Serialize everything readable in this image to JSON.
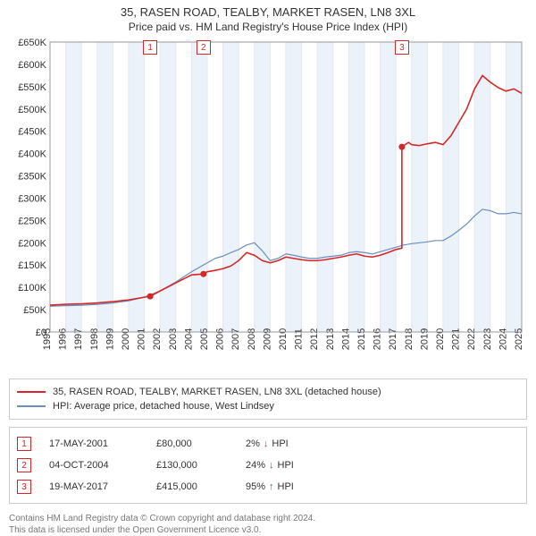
{
  "title": "35, RASEN ROAD, TEALBY, MARKET RASEN, LN8 3XL",
  "subtitle": "Price paid vs. HM Land Registry's House Price Index (HPI)",
  "chart": {
    "type": "line",
    "background_color": "#ffffff",
    "grid_band_color": "#ecf2fa",
    "grid_line_color": "#e6e6e6",
    "axis_color": "#999999",
    "label_fontsize": 11,
    "xlim": [
      1995,
      2025
    ],
    "ylim": [
      0,
      650000
    ],
    "ytick_step": 50000,
    "yticks": [
      {
        "v": 0,
        "label": "£0"
      },
      {
        "v": 50000,
        "label": "£50K"
      },
      {
        "v": 100000,
        "label": "£100K"
      },
      {
        "v": 150000,
        "label": "£150K"
      },
      {
        "v": 200000,
        "label": "£200K"
      },
      {
        "v": 250000,
        "label": "£250K"
      },
      {
        "v": 300000,
        "label": "£300K"
      },
      {
        "v": 350000,
        "label": "£350K"
      },
      {
        "v": 400000,
        "label": "£400K"
      },
      {
        "v": 450000,
        "label": "£450K"
      },
      {
        "v": 500000,
        "label": "£500K"
      },
      {
        "v": 550000,
        "label": "£550K"
      },
      {
        "v": 600000,
        "label": "£600K"
      },
      {
        "v": 650000,
        "label": "£650K"
      }
    ],
    "xticks": [
      1995,
      1996,
      1997,
      1998,
      1999,
      2000,
      2001,
      2002,
      2003,
      2004,
      2005,
      2006,
      2007,
      2008,
      2009,
      2010,
      2011,
      2012,
      2013,
      2014,
      2015,
      2016,
      2017,
      2018,
      2019,
      2020,
      2021,
      2022,
      2023,
      2024,
      2025
    ],
    "series": {
      "price_paid": {
        "label": "35, RASEN ROAD, TEALBY, MARKET RASEN, LN8 3XL (detached house)",
        "color": "#d62728",
        "line_width": 1.6,
        "data": [
          [
            1995.0,
            60000
          ],
          [
            1996.0,
            62000
          ],
          [
            1997.0,
            63000
          ],
          [
            1998.0,
            65000
          ],
          [
            1999.0,
            68000
          ],
          [
            2000.0,
            72000
          ],
          [
            2001.0,
            78000
          ],
          [
            2001.37,
            80000
          ],
          [
            2001.37,
            80000
          ],
          [
            2002.0,
            92000
          ],
          [
            2003.0,
            110000
          ],
          [
            2004.0,
            128000
          ],
          [
            2004.76,
            130000
          ],
          [
            2004.76,
            130000
          ],
          [
            2005.0,
            135000
          ],
          [
            2005.5,
            138000
          ],
          [
            2006.0,
            142000
          ],
          [
            2006.5,
            148000
          ],
          [
            2007.0,
            160000
          ],
          [
            2007.5,
            178000
          ],
          [
            2008.0,
            172000
          ],
          [
            2008.5,
            160000
          ],
          [
            2009.0,
            155000
          ],
          [
            2009.5,
            160000
          ],
          [
            2010.0,
            168000
          ],
          [
            2010.5,
            165000
          ],
          [
            2011.0,
            162000
          ],
          [
            2011.5,
            160000
          ],
          [
            2012.0,
            160000
          ],
          [
            2012.5,
            162000
          ],
          [
            2013.0,
            165000
          ],
          [
            2013.5,
            168000
          ],
          [
            2014.0,
            172000
          ],
          [
            2014.5,
            175000
          ],
          [
            2015.0,
            170000
          ],
          [
            2015.5,
            168000
          ],
          [
            2016.0,
            172000
          ],
          [
            2016.5,
            178000
          ],
          [
            2017.0,
            185000
          ],
          [
            2017.38,
            188000
          ],
          [
            2017.38,
            415000
          ],
          [
            2017.5,
            418000
          ],
          [
            2017.8,
            425000
          ],
          [
            2018.0,
            420000
          ],
          [
            2018.5,
            418000
          ],
          [
            2019.0,
            422000
          ],
          [
            2019.5,
            425000
          ],
          [
            2020.0,
            420000
          ],
          [
            2020.5,
            440000
          ],
          [
            2021.0,
            470000
          ],
          [
            2021.5,
            500000
          ],
          [
            2022.0,
            545000
          ],
          [
            2022.5,
            575000
          ],
          [
            2023.0,
            560000
          ],
          [
            2023.5,
            548000
          ],
          [
            2024.0,
            540000
          ],
          [
            2024.5,
            545000
          ],
          [
            2025.0,
            535000
          ]
        ]
      },
      "hpi": {
        "label": "HPI: Average price, detached house, West Lindsey",
        "color": "#6a8fbf",
        "line_width": 1.2,
        "data": [
          [
            1995.0,
            58000
          ],
          [
            1996.0,
            59000
          ],
          [
            1997.0,
            60000
          ],
          [
            1998.0,
            62000
          ],
          [
            1999.0,
            65000
          ],
          [
            2000.0,
            70000
          ],
          [
            2001.0,
            78000
          ],
          [
            2002.0,
            92000
          ],
          [
            2003.0,
            112000
          ],
          [
            2004.0,
            135000
          ],
          [
            2005.0,
            155000
          ],
          [
            2005.5,
            165000
          ],
          [
            2006.0,
            170000
          ],
          [
            2006.5,
            178000
          ],
          [
            2007.0,
            185000
          ],
          [
            2007.5,
            195000
          ],
          [
            2008.0,
            200000
          ],
          [
            2008.5,
            182000
          ],
          [
            2009.0,
            160000
          ],
          [
            2009.5,
            165000
          ],
          [
            2010.0,
            175000
          ],
          [
            2010.5,
            172000
          ],
          [
            2011.0,
            168000
          ],
          [
            2011.5,
            165000
          ],
          [
            2012.0,
            165000
          ],
          [
            2012.5,
            168000
          ],
          [
            2013.0,
            170000
          ],
          [
            2013.5,
            172000
          ],
          [
            2014.0,
            178000
          ],
          [
            2014.5,
            180000
          ],
          [
            2015.0,
            178000
          ],
          [
            2015.5,
            175000
          ],
          [
            2016.0,
            180000
          ],
          [
            2016.5,
            185000
          ],
          [
            2017.0,
            190000
          ],
          [
            2017.5,
            195000
          ],
          [
            2018.0,
            198000
          ],
          [
            2018.5,
            200000
          ],
          [
            2019.0,
            202000
          ],
          [
            2019.5,
            205000
          ],
          [
            2020.0,
            205000
          ],
          [
            2020.5,
            215000
          ],
          [
            2021.0,
            228000
          ],
          [
            2021.5,
            242000
          ],
          [
            2022.0,
            260000
          ],
          [
            2022.5,
            275000
          ],
          [
            2023.0,
            272000
          ],
          [
            2023.5,
            265000
          ],
          [
            2024.0,
            265000
          ],
          [
            2024.5,
            268000
          ],
          [
            2025.0,
            265000
          ]
        ]
      }
    },
    "sale_markers": [
      {
        "n": "1",
        "x": 2001.37,
        "y": 80000,
        "marker_color": "#d62728"
      },
      {
        "n": "2",
        "x": 2004.76,
        "y": 130000,
        "marker_color": "#d62728"
      },
      {
        "n": "3",
        "x": 2017.38,
        "y": 415000,
        "marker_color": "#d62728"
      }
    ]
  },
  "legend": {
    "items": [
      {
        "color": "#d62728",
        "label": "35, RASEN ROAD, TEALBY, MARKET RASEN, LN8 3XL (detached house)"
      },
      {
        "color": "#6a8fbf",
        "label": "HPI: Average price, detached house, West Lindsey"
      }
    ]
  },
  "events": [
    {
      "n": "1",
      "date": "17-MAY-2001",
      "price": "£80,000",
      "diff_pct": "2%",
      "dir": "down",
      "dir_glyph": "↓",
      "suffix": "HPI",
      "box_color": "#d62728"
    },
    {
      "n": "2",
      "date": "04-OCT-2004",
      "price": "£130,000",
      "diff_pct": "24%",
      "dir": "down",
      "dir_glyph": "↓",
      "suffix": "HPI",
      "box_color": "#d62728"
    },
    {
      "n": "3",
      "date": "19-MAY-2017",
      "price": "£415,000",
      "diff_pct": "95%",
      "dir": "up",
      "dir_glyph": "↑",
      "suffix": "HPI",
      "box_color": "#d62728"
    }
  ],
  "footer": {
    "line1": "Contains HM Land Registry data © Crown copyright and database right 2024.",
    "line2": "This data is licensed under the Open Government Licence v3.0."
  },
  "colors": {
    "text": "#333333",
    "muted": "#777777",
    "border": "#cccccc",
    "up": "#2a8a2a",
    "down": "#c0392b"
  }
}
